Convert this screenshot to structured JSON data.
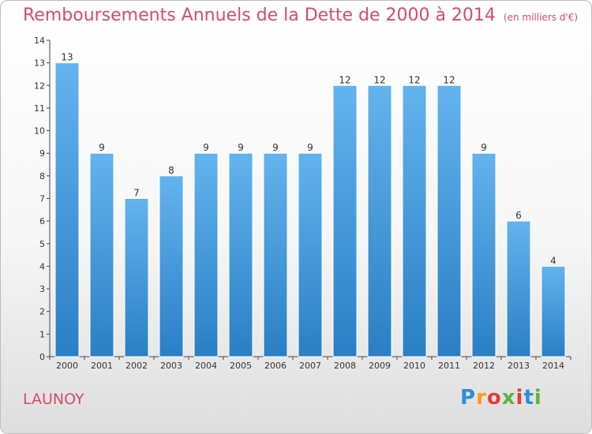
{
  "header": {
    "title": "Remboursements Annuels de la Dette de 2000 à 2014",
    "subtitle": "(en milliers d'€)"
  },
  "footer": {
    "commune": "LAUNOY",
    "logo_text": "Proxiti"
  },
  "colors": {
    "bar": "#3a92d6",
    "title": "#d94a6b"
  },
  "chart_data": {
    "type": "bar",
    "categories": [
      "2000",
      "2001",
      "2002",
      "2003",
      "2004",
      "2005",
      "2006",
      "2007",
      "2008",
      "2009",
      "2010",
      "2011",
      "2012",
      "2013",
      "2014"
    ],
    "values": [
      13,
      9,
      7,
      8,
      9,
      9,
      9,
      9,
      12,
      12,
      12,
      12,
      9,
      6,
      4
    ],
    "ylim": [
      0,
      14
    ],
    "yticks": [
      0,
      1,
      2,
      3,
      4,
      5,
      6,
      7,
      8,
      9,
      10,
      11,
      12,
      13,
      14
    ],
    "grid": false,
    "legend": "none"
  }
}
